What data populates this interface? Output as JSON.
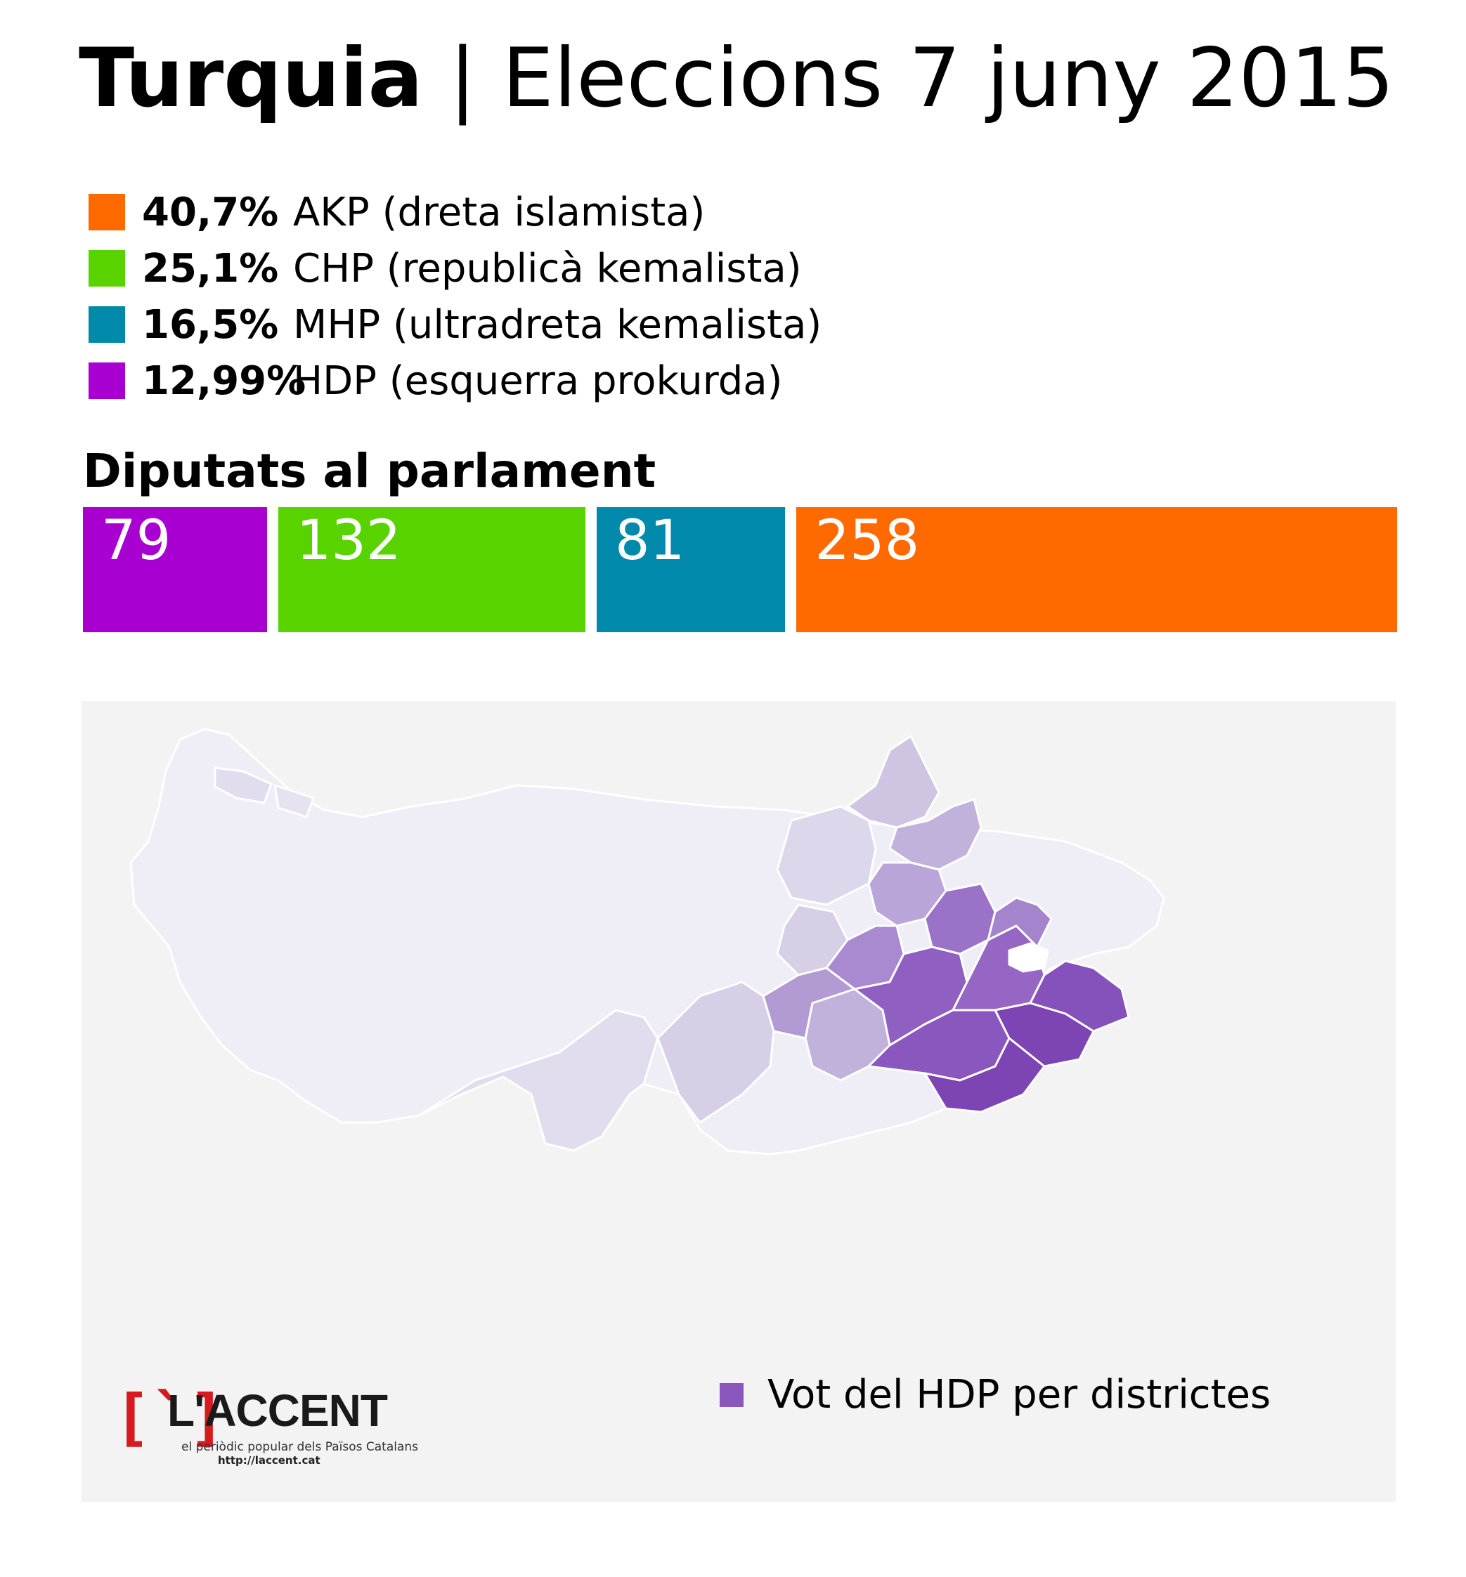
{
  "title": {
    "country": "Turquia",
    "separator": "|",
    "rest": "Eleccions 7 juny 2015"
  },
  "legend": [
    {
      "pct": "40,7%",
      "label": "AKP (dreta islamista)",
      "color": "#ff6a00"
    },
    {
      "pct": "25,1%",
      "label": "CHP (republicà kemalista)",
      "color": "#58d300"
    },
    {
      "pct": "16,5%",
      "label": "MHP (ultradreta kemalista)",
      "color": "#0089ab"
    },
    {
      "pct": "12,99%",
      "label": "HDP (esquerra prokurda)",
      "color": "#a800d1"
    }
  ],
  "seats_title": "Diputats al parlament",
  "chart_data": {
    "type": "bar",
    "orientation": "horizontal-stacked",
    "categories": [
      "HDP",
      "CHP",
      "MHP",
      "AKP"
    ],
    "values": [
      79,
      132,
      81,
      258
    ],
    "colors": [
      "#a800d1",
      "#58d300",
      "#0089ab",
      "#ff6a00"
    ]
  },
  "map": {
    "legend_label": "Vot del HDP per districtes",
    "legend_color": "#8a57be",
    "scale_colors": [
      "#efedf5",
      "#dcd7ea",
      "#c1b2dc",
      "#a989cf",
      "#8f5fc1",
      "#7d44b3"
    ]
  },
  "logo": {
    "mark": "[`]",
    "name": "L'ACCENT",
    "tagline": "el periòdic popular dels Països Catalans",
    "url": "http://laccent.cat"
  }
}
